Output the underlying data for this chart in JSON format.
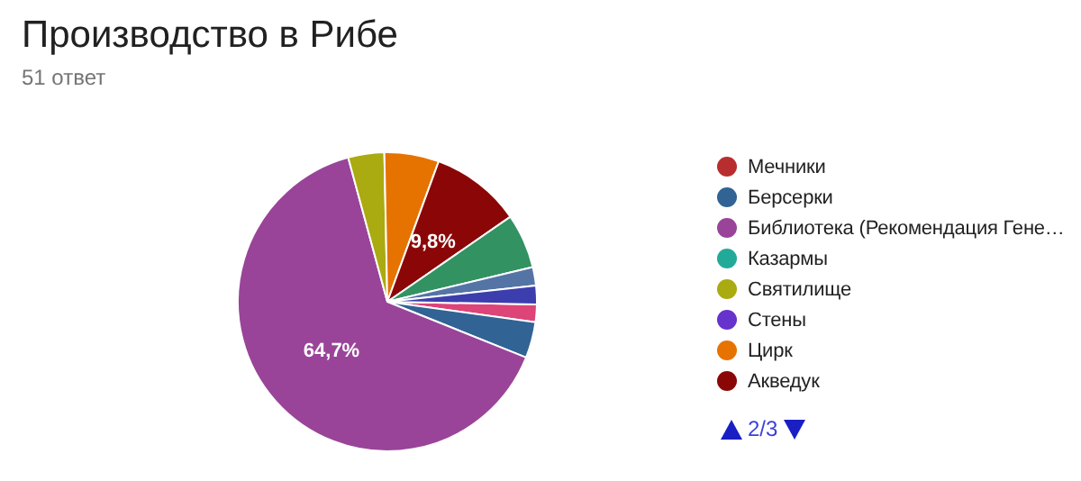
{
  "chart_data": {
    "type": "pie",
    "title": "Производство в Рибе",
    "subtitle": "51 ответ",
    "categories": [
      null,
      "Мечники",
      "Берсерки",
      "Библиотека (Рекомендация Гене…",
      "Казармы",
      "Святилище",
      "Стены",
      "Цирк",
      "Акведук",
      null,
      null,
      null
    ],
    "values": [
      1.9,
      0,
      3.9,
      64.7,
      0,
      3.9,
      0,
      5.9,
      9.8,
      5.9,
      2.0,
      2.0
    ],
    "colors": [
      "#dd4477",
      "#b82e2e",
      "#316395",
      "#994499",
      "#22aa99",
      "#aaaa11",
      "#6633cc",
      "#e67300",
      "#8b0707",
      "#329262",
      "#5574a6",
      "#3b3eac"
    ],
    "value_labels": [
      null,
      null,
      null,
      "64,7%",
      null,
      null,
      null,
      null,
      "9,8%",
      null,
      null,
      null
    ],
    "legend": "right",
    "annotations": [
      "2/3"
    ]
  }
}
